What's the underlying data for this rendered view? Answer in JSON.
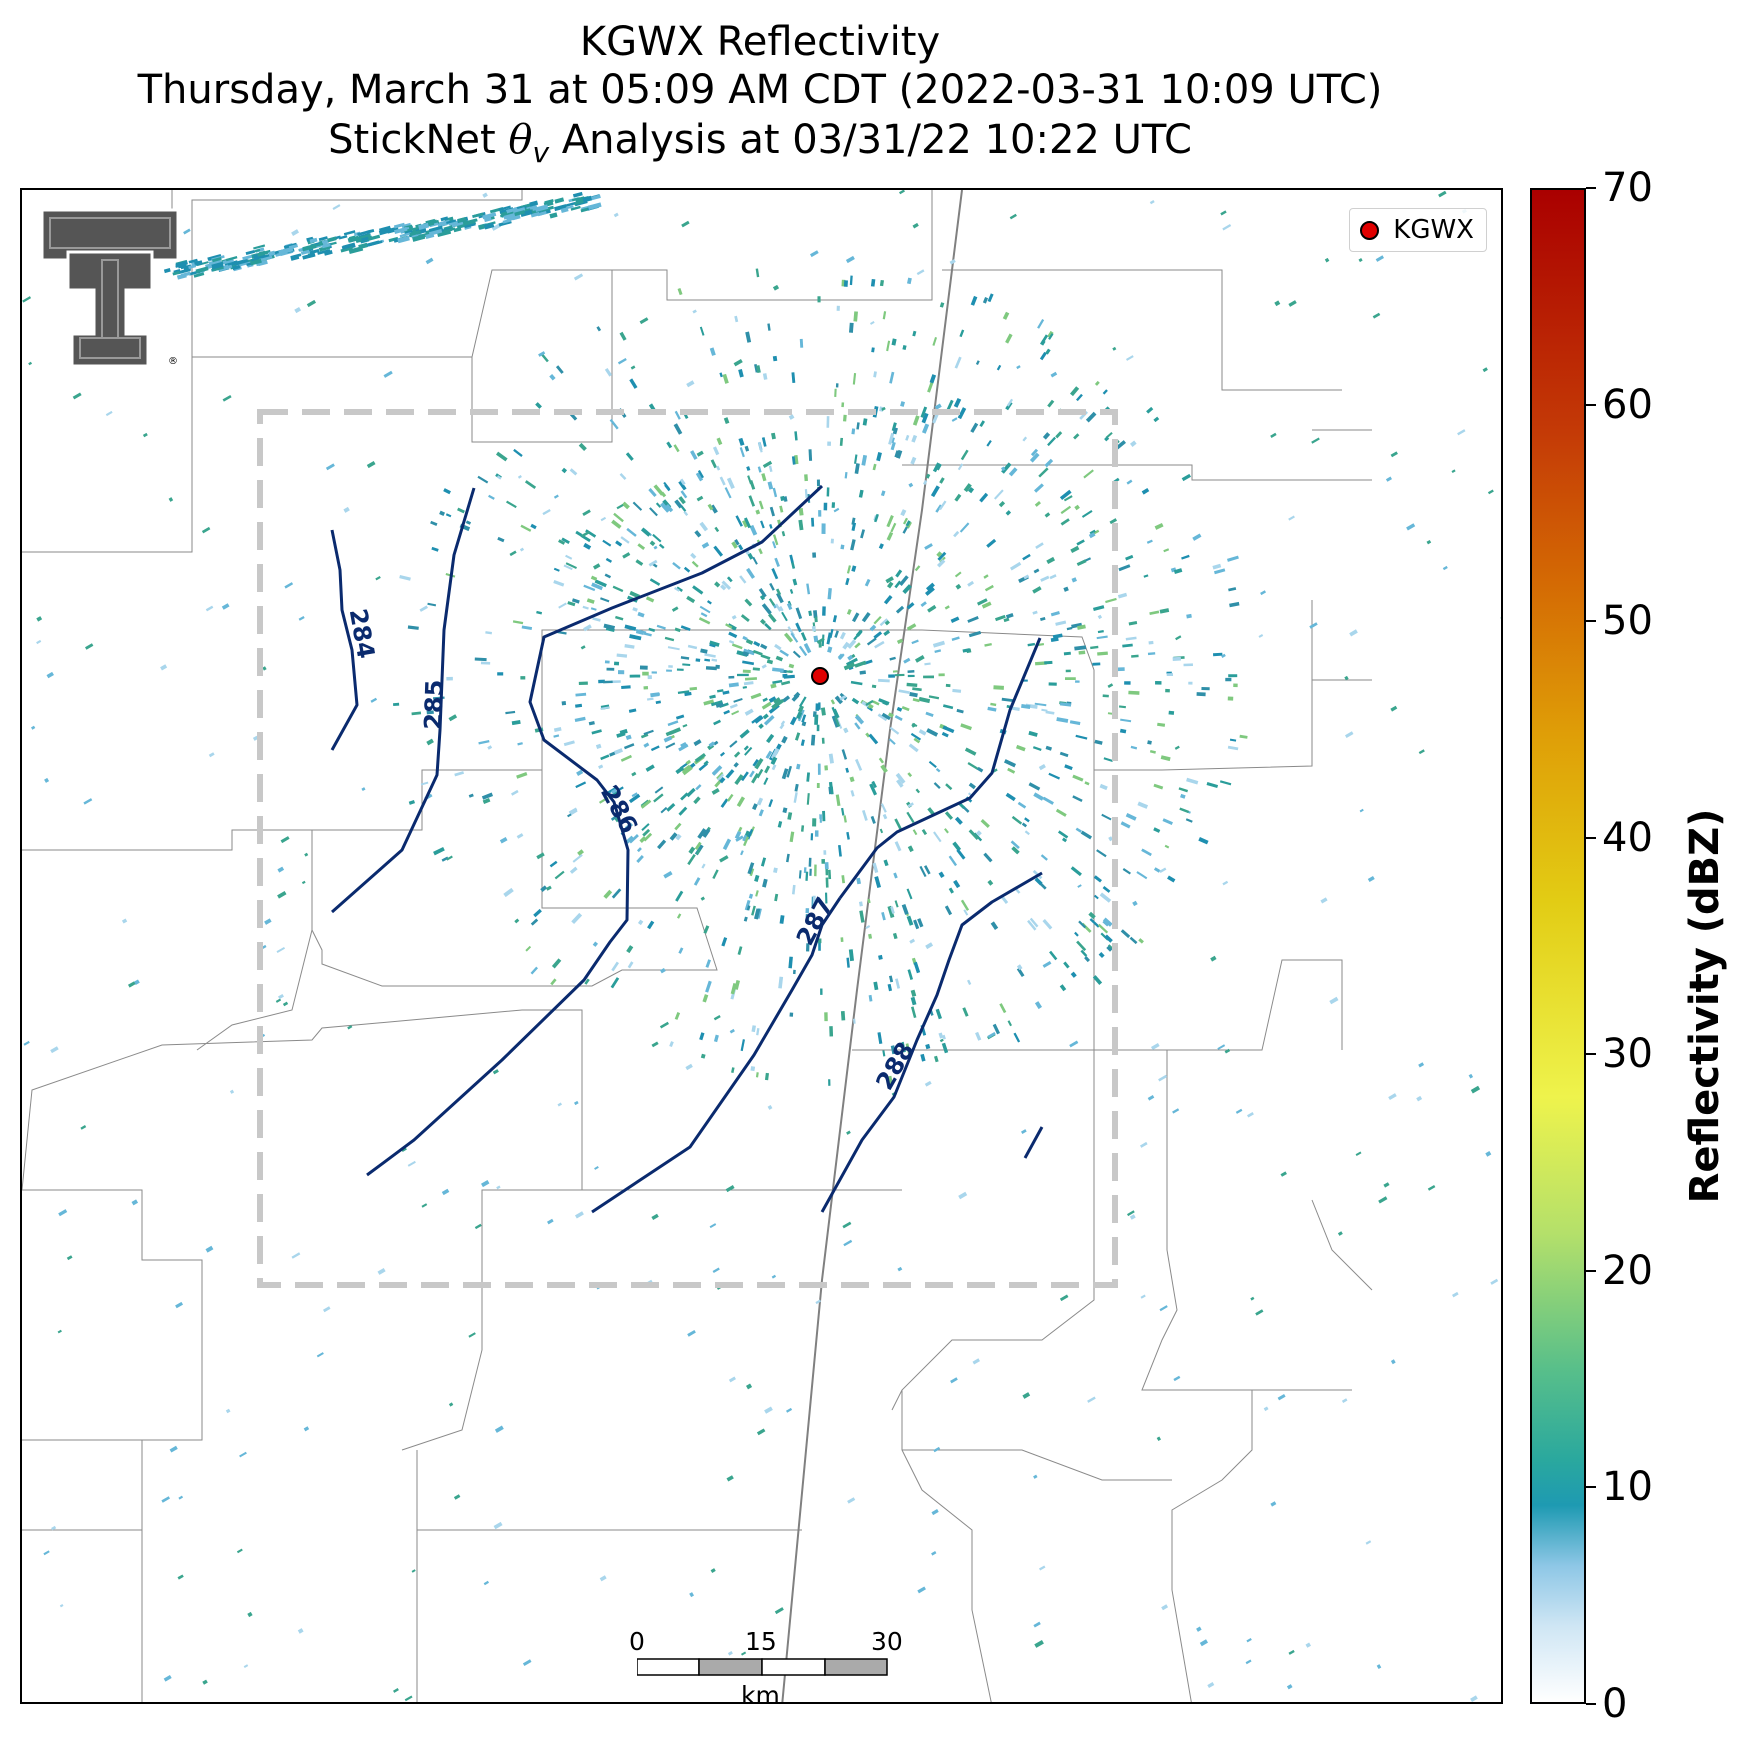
{
  "title": {
    "line1": "KGWX Reflectivity",
    "line2": "Thursday, March 31 at 05:09 AM CDT (2022-03-31 10:09 UTC)",
    "line3_pre": "StickNet ",
    "line3_theta": "θ",
    "line3_sub": "v",
    "line3_post": " Analysis at 03/31/22 10:22 UTC"
  },
  "legend": {
    "label": "KGWX",
    "marker_color": "#e00000"
  },
  "radar_site": {
    "name": "KGWX"
  },
  "logo": {
    "name": "texas-tech-double-t-logo",
    "registered_mark": "®"
  },
  "contours": {
    "color": "#0a2a6e",
    "labels": [
      "284",
      "285",
      "286",
      "287",
      "288"
    ]
  },
  "analysis_box": {
    "style": "dashed",
    "color": "#c8c8c8"
  },
  "colorbar": {
    "label": "Reflectivity (dBZ)",
    "min": 0,
    "max": 70,
    "ticks": [
      "0",
      "10",
      "20",
      "30",
      "40",
      "50",
      "60",
      "70"
    ]
  },
  "scale_bar": {
    "unit": "km",
    "ticks": [
      "0",
      "15",
      "30"
    ]
  },
  "chart_data": {
    "type": "map",
    "product": "reflectivity",
    "radar": "KGWX",
    "units": "dBZ",
    "value_range": [
      0,
      70
    ],
    "contour_field": "theta_v",
    "contour_levels": [
      284,
      285,
      286,
      287,
      288
    ],
    "colors": {
      "contour": "#0a2a6e",
      "radar_marker": "#e00000",
      "echo_typical": "#2a9d9a"
    }
  }
}
